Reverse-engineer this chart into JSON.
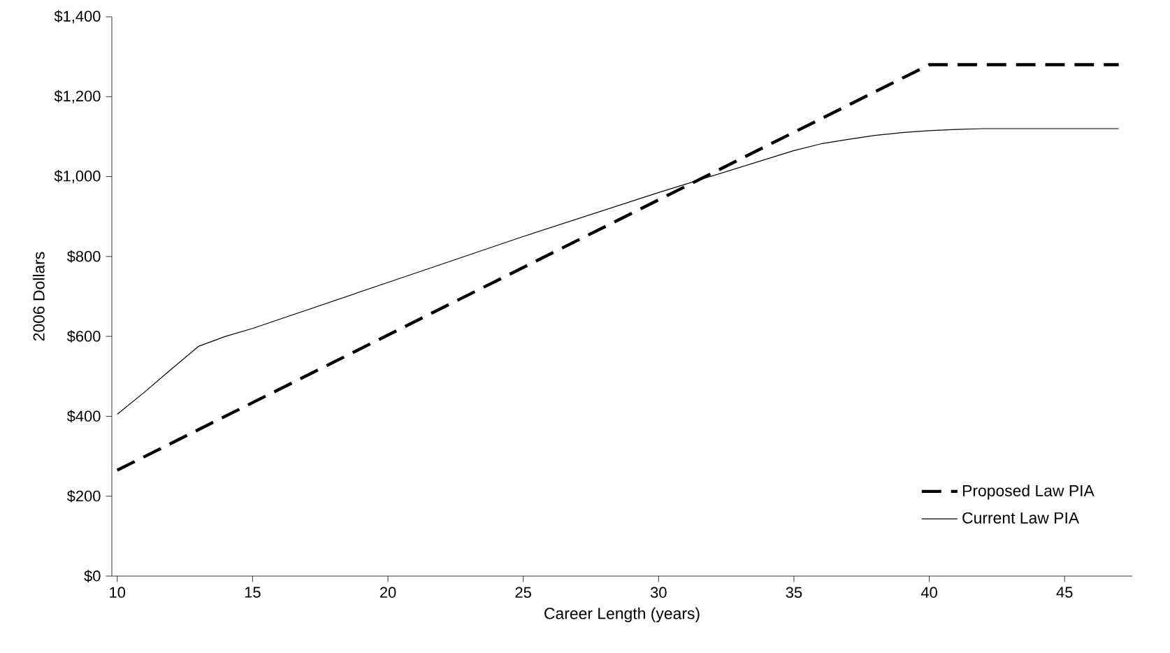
{
  "chart_data": {
    "type": "line",
    "xlabel": "Career Length (years)",
    "ylabel": "2006 Dollars",
    "xlim": [
      9.8,
      47.5
    ],
    "ylim": [
      0,
      1400
    ],
    "xticks": [
      10,
      15,
      20,
      25,
      30,
      35,
      40,
      45
    ],
    "yticks": [
      {
        "value": 0,
        "label": "$0"
      },
      {
        "value": 200,
        "label": "$200"
      },
      {
        "value": 400,
        "label": "$400"
      },
      {
        "value": 600,
        "label": "$600"
      },
      {
        "value": 800,
        "label": "$800"
      },
      {
        "value": 1000,
        "label": "$1,000"
      },
      {
        "value": 1200,
        "label": "$1,200"
      },
      {
        "value": 1400,
        "label": "$1,400"
      }
    ],
    "legend": "bottom right",
    "grid": false,
    "series": [
      {
        "name": "Proposed Law PIA",
        "color": "#000000",
        "line_style": "dashed",
        "x": [
          10,
          40,
          47
        ],
        "values": [
          265,
          1280,
          1280
        ]
      },
      {
        "name": "Current Law PIA",
        "color": "#000000",
        "line_style": "solid",
        "x": [
          10,
          11,
          12,
          13,
          14,
          15,
          20,
          25,
          30,
          35,
          36,
          37,
          38,
          39,
          40,
          41,
          42,
          47
        ],
        "values": [
          405,
          460,
          518,
          575,
          600,
          620,
          735,
          850,
          960,
          1065,
          1082,
          1093,
          1103,
          1110,
          1115,
          1118,
          1120,
          1120
        ]
      }
    ]
  }
}
